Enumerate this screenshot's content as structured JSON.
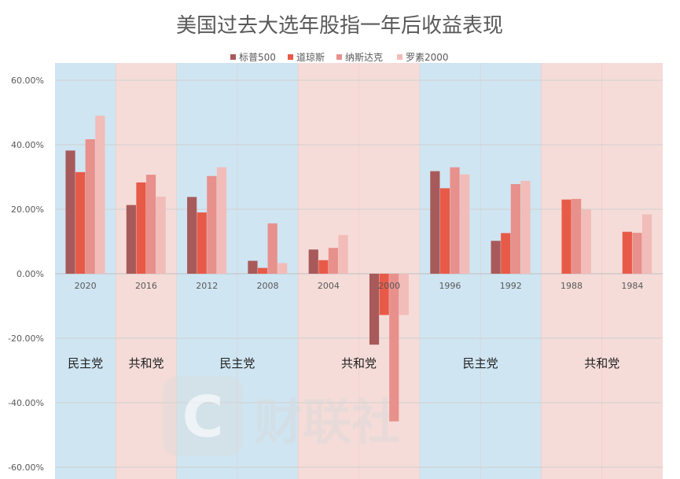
{
  "chart_data": {
    "type": "bar",
    "title": "美国过去大选年股指一年后收益表现",
    "xlabel": "",
    "ylabel": "",
    "categories": [
      "2020",
      "2016",
      "2012",
      "2008",
      "2004",
      "2000",
      "1996",
      "1992",
      "1988",
      "1984"
    ],
    "series": [
      {
        "name": "标普500",
        "color": "#a85a5a",
        "values": [
          38.2,
          21.3,
          23.8,
          4.0,
          7.5,
          -22.0,
          31.8,
          10.2,
          null,
          null
        ]
      },
      {
        "name": "道琼斯",
        "color": "#e85a48",
        "values": [
          31.5,
          28.3,
          19.0,
          1.8,
          4.2,
          -12.8,
          26.5,
          12.6,
          23.0,
          13.0
        ]
      },
      {
        "name": "纳斯达克",
        "color": "#e8908c",
        "values": [
          41.7,
          30.7,
          30.3,
          15.6,
          8.0,
          -45.8,
          33.0,
          27.8,
          23.2,
          12.7
        ]
      },
      {
        "name": "罗素2000",
        "color": "#f2bcb8",
        "values": [
          49.0,
          23.9,
          33.0,
          3.3,
          12.0,
          -12.8,
          30.8,
          28.8,
          19.9,
          18.4
        ]
      }
    ],
    "ylim": [
      -60,
      60
    ],
    "yticks": [
      60,
      40,
      20,
      0,
      -20,
      -40,
      -60
    ],
    "ytick_labels": [
      "60.00%",
      "40.00%",
      "20.00%",
      "0.00%",
      "-20.00%",
      "-40.00%",
      "-60.00%"
    ],
    "legend_position": "top",
    "grid": true,
    "party_bands": [
      {
        "label": "民主党",
        "from": 0,
        "to": 0,
        "color": "#cfe5f2"
      },
      {
        "label": "共和党",
        "from": 1,
        "to": 1,
        "color": "#f5dcd8"
      },
      {
        "label": "民主党",
        "from": 2,
        "to": 3,
        "color": "#cfe5f2"
      },
      {
        "label": "共和党",
        "from": 4,
        "to": 5,
        "color": "#f5dcd8"
      },
      {
        "label": "民主党",
        "from": 6,
        "to": 7,
        "color": "#cfe5f2"
      },
      {
        "label": "共和党",
        "from": 8,
        "to": 9,
        "color": "#f5dcd8"
      }
    ]
  },
  "watermark": "财联社"
}
